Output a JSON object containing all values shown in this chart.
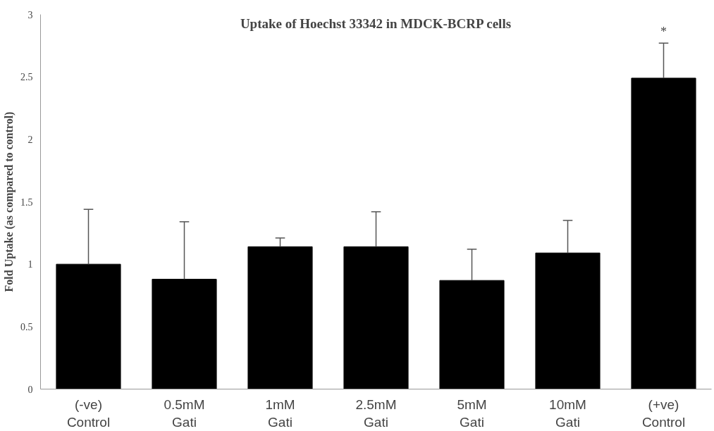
{
  "chart_data": {
    "type": "bar",
    "title": "Uptake of Hoechst 33342 in MDCK-BCRP cells",
    "ylabel": "Fold Uptake (as compared to control)",
    "categories": [
      "(-ve)\nControl",
      "0.5mM\nGati",
      "1mM\nGati",
      "2.5mM\nGati",
      "5mM\nGati",
      "10mM\nGati",
      "(+ve)\nControl"
    ],
    "values": [
      1.0,
      0.88,
      1.14,
      1.14,
      0.87,
      1.09,
      2.49
    ],
    "errors": [
      [
        1.0,
        1.44
      ],
      [
        0.88,
        1.34
      ],
      [
        1.14,
        1.21
      ],
      [
        1.14,
        1.42
      ],
      [
        0.87,
        1.12
      ],
      [
        1.09,
        1.35
      ],
      [
        2.49,
        2.77
      ]
    ],
    "color": "#000000",
    "ylim": [
      0,
      3
    ],
    "yticks": [
      0,
      0.5,
      1,
      1.5,
      2,
      2.5,
      3
    ],
    "annotations": [
      "*"
    ],
    "grid": false
  }
}
